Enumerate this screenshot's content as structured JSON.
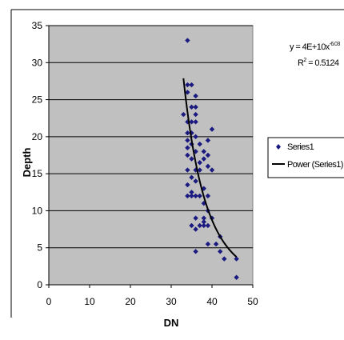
{
  "chart_data": {
    "type": "scatter",
    "xlabel": "DN",
    "ylabel": "Depth",
    "xlim": [
      0,
      50
    ],
    "ylim": [
      0,
      35
    ],
    "x_ticks": [
      0,
      10,
      20,
      30,
      40,
      50
    ],
    "y_ticks": [
      0,
      5,
      10,
      15,
      20,
      25,
      30,
      35
    ],
    "grid": "horizontal",
    "legend_position": "right",
    "colors": {
      "plot_bg": "#c0c0c0",
      "marker": "#1a1a80",
      "trend": "#000000"
    },
    "series": [
      {
        "name": "Series1",
        "marker": "diamond",
        "points": [
          [
            34,
            33
          ],
          [
            34,
            27
          ],
          [
            35,
            27
          ],
          [
            34,
            26
          ],
          [
            36,
            25.5
          ],
          [
            35,
            24
          ],
          [
            36,
            24
          ],
          [
            33,
            23
          ],
          [
            36,
            23
          ],
          [
            34,
            22
          ],
          [
            35,
            22
          ],
          [
            36,
            22
          ],
          [
            34,
            20.5
          ],
          [
            35,
            20.5
          ],
          [
            36,
            20
          ],
          [
            40,
            21
          ],
          [
            34,
            19.5
          ],
          [
            35,
            19
          ],
          [
            37,
            19
          ],
          [
            39,
            19.5
          ],
          [
            34,
            18.5
          ],
          [
            36,
            18
          ],
          [
            38,
            18
          ],
          [
            34,
            17.5
          ],
          [
            39,
            17.5
          ],
          [
            35,
            17
          ],
          [
            38,
            17
          ],
          [
            37,
            16.5
          ],
          [
            39,
            16
          ],
          [
            34,
            15.5
          ],
          [
            36,
            15.5
          ],
          [
            37,
            15.5
          ],
          [
            40,
            15.5
          ],
          [
            35,
            14.5
          ],
          [
            36,
            14
          ],
          [
            34,
            13.5
          ],
          [
            38,
            13
          ],
          [
            35,
            12.5
          ],
          [
            34,
            12
          ],
          [
            35,
            12
          ],
          [
            36,
            12
          ],
          [
            37,
            12
          ],
          [
            39,
            12
          ],
          [
            38,
            11
          ],
          [
            39,
            10
          ],
          [
            36,
            9
          ],
          [
            38,
            9
          ],
          [
            40,
            9
          ],
          [
            38,
            8.5
          ],
          [
            35,
            8
          ],
          [
            37,
            8
          ],
          [
            38,
            8
          ],
          [
            39,
            8
          ],
          [
            36,
            7.5
          ],
          [
            42,
            6.5
          ],
          [
            39,
            5.5
          ],
          [
            41,
            5.5
          ],
          [
            36,
            4.5
          ],
          [
            42,
            4.5
          ],
          [
            43,
            3.5
          ],
          [
            46,
            3.5
          ],
          [
            46,
            1
          ]
        ]
      },
      {
        "name": "Power (Series1)",
        "type": "power-trendline",
        "from_x": 33,
        "to_x": 46
      }
    ],
    "equation_line1": "y = 4E+10x",
    "equation_exponent": "-6.03",
    "r2_label": "R",
    "r2_value": " = 0.5124"
  }
}
